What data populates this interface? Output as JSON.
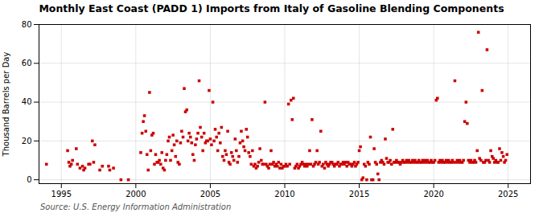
{
  "chart_data": {
    "type": "scatter",
    "title": "Monthly East Coast (PADD 1) Imports from Italy of Gasoline Blending Components",
    "ylabel": "Thousand Barrels per Day",
    "source": "Source: U.S. Energy Information Administration",
    "color": "#cc0000",
    "marker": "square",
    "grid": true,
    "xlim": [
      1993.5,
      2026.5
    ],
    "ylim": [
      -2,
      80
    ],
    "xticks": [
      1995,
      2000,
      2005,
      2010,
      2015,
      2020,
      2025
    ],
    "yticks": [
      0,
      20,
      40,
      60,
      80
    ],
    "x": [
      1994.0,
      1995.42,
      1995.5,
      1995.58,
      1995.67,
      1995.75,
      1996.0,
      1996.08,
      1996.25,
      1996.42,
      1996.5,
      1996.58,
      1996.83,
      1996.92,
      1997.08,
      1997.17,
      1997.25,
      1997.58,
      1997.75,
      1998.17,
      1998.25,
      1998.5,
      1999.0,
      1999.5,
      2000.33,
      2000.42,
      2000.5,
      2000.58,
      2000.67,
      2000.75,
      2000.83,
      2000.92,
      2001.0,
      2001.08,
      2001.17,
      2001.25,
      2001.33,
      2001.42,
      2001.5,
      2001.58,
      2001.67,
      2001.75,
      2001.83,
      2001.92,
      2002.0,
      2002.08,
      2002.17,
      2002.25,
      2002.33,
      2002.42,
      2002.5,
      2002.58,
      2002.67,
      2002.75,
      2002.83,
      2002.92,
      2003.0,
      2003.08,
      2003.17,
      2003.25,
      2003.33,
      2003.42,
      2003.5,
      2003.58,
      2003.67,
      2003.75,
      2003.83,
      2003.92,
      2004.0,
      2004.08,
      2004.17,
      2004.25,
      2004.33,
      2004.42,
      2004.5,
      2004.58,
      2004.67,
      2004.75,
      2004.83,
      2004.92,
      2005.0,
      2005.08,
      2005.17,
      2005.25,
      2005.33,
      2005.42,
      2005.5,
      2005.58,
      2005.67,
      2005.75,
      2005.83,
      2005.92,
      2006.0,
      2006.08,
      2006.17,
      2006.25,
      2006.33,
      2006.42,
      2006.5,
      2006.58,
      2006.67,
      2006.75,
      2006.83,
      2006.92,
      2007.0,
      2007.08,
      2007.17,
      2007.25,
      2007.33,
      2007.42,
      2007.5,
      2007.58,
      2007.67,
      2007.75,
      2007.83,
      2007.92,
      2008.0,
      2008.08,
      2008.17,
      2008.25,
      2008.33,
      2008.42,
      2008.5,
      2008.58,
      2008.67,
      2008.75,
      2008.83,
      2008.92,
      2009.0,
      2009.08,
      2009.17,
      2009.25,
      2009.33,
      2009.42,
      2009.5,
      2009.58,
      2009.67,
      2009.75,
      2009.83,
      2009.92,
      2010.0,
      2010.08,
      2010.17,
      2010.25,
      2010.33,
      2010.42,
      2010.5,
      2010.58,
      2010.67,
      2010.75,
      2010.83,
      2010.92,
      2011.0,
      2011.08,
      2011.17,
      2011.25,
      2011.33,
      2011.42,
      2011.5,
      2011.58,
      2011.67,
      2011.75,
      2011.83,
      2011.92,
      2012.0,
      2012.08,
      2012.17,
      2012.25,
      2012.33,
      2012.42,
      2012.5,
      2012.58,
      2012.67,
      2012.75,
      2012.83,
      2012.92,
      2013.0,
      2013.08,
      2013.17,
      2013.25,
      2013.33,
      2013.42,
      2013.5,
      2013.58,
      2013.67,
      2013.75,
      2013.83,
      2013.92,
      2014.0,
      2014.08,
      2014.17,
      2014.25,
      2014.33,
      2014.42,
      2014.5,
      2014.58,
      2014.67,
      2014.75,
      2014.83,
      2014.92,
      2015.0,
      2015.08,
      2015.17,
      2015.25,
      2015.33,
      2015.42,
      2015.5,
      2015.58,
      2015.67,
      2015.75,
      2015.83,
      2015.92,
      2016.0,
      2016.08,
      2016.17,
      2016.25,
      2016.33,
      2016.42,
      2016.5,
      2016.58,
      2016.67,
      2016.75,
      2016.83,
      2016.92,
      2017.0,
      2017.08,
      2017.17,
      2017.25,
      2017.33,
      2017.42,
      2017.5,
      2017.58,
      2017.67,
      2017.75,
      2017.83,
      2017.92,
      2018.0,
      2018.08,
      2018.17,
      2018.25,
      2018.33,
      2018.42,
      2018.5,
      2018.58,
      2018.67,
      2018.75,
      2018.83,
      2018.92,
      2019.0,
      2019.08,
      2019.17,
      2019.25,
      2019.33,
      2019.42,
      2019.5,
      2019.58,
      2019.67,
      2019.75,
      2019.83,
      2019.92,
      2020.0,
      2020.08,
      2020.17,
      2020.25,
      2020.33,
      2020.42,
      2020.5,
      2020.58,
      2020.67,
      2020.75,
      2020.83,
      2020.92,
      2021.0,
      2021.08,
      2021.17,
      2021.25,
      2021.33,
      2021.42,
      2021.5,
      2021.58,
      2021.67,
      2021.75,
      2021.83,
      2021.92,
      2022.0,
      2022.08,
      2022.17,
      2022.25,
      2022.33,
      2022.42,
      2022.5,
      2022.58,
      2022.67,
      2022.75,
      2022.83,
      2022.92,
      2023.0,
      2023.08,
      2023.17,
      2023.25,
      2023.33,
      2023.42,
      2023.5,
      2023.58,
      2023.67,
      2023.75,
      2023.83,
      2023.92,
      2024.0,
      2024.08,
      2024.17,
      2024.25,
      2024.33,
      2024.42,
      2024.5,
      2024.58,
      2024.67,
      2024.75,
      2024.83,
      2024.92
    ],
    "values": [
      8,
      15,
      9,
      7,
      8,
      10,
      16,
      8,
      6,
      7,
      5,
      6,
      8,
      8,
      20,
      9,
      18,
      5,
      7,
      7,
      5,
      6,
      0,
      0,
      14,
      24,
      30,
      33,
      25,
      13,
      5,
      45,
      15,
      23,
      24,
      8,
      13,
      9,
      9,
      10,
      8,
      14,
      6,
      5,
      10,
      13,
      20,
      22,
      10,
      15,
      23,
      18,
      12,
      20,
      9,
      8,
      19,
      25,
      22,
      47,
      35,
      36,
      20,
      24,
      22,
      19,
      13,
      10,
      18,
      21,
      24,
      51,
      27,
      22,
      15,
      24,
      19,
      20,
      20,
      46,
      21,
      18,
      40,
      20,
      26,
      22,
      15,
      24,
      19,
      27,
      12,
      10,
      15,
      13,
      25,
      9,
      8,
      14,
      12,
      10,
      21,
      15,
      9,
      12,
      19,
      25,
      20,
      17,
      15,
      26,
      22,
      14,
      12,
      8,
      15,
      7,
      8,
      6,
      7,
      9,
      16,
      10,
      8,
      8,
      40,
      8,
      7,
      6,
      8,
      15,
      8,
      9,
      7,
      8,
      7,
      9,
      6,
      8,
      6,
      7,
      7,
      8,
      7,
      39,
      8,
      41,
      31,
      42,
      6,
      7,
      8,
      6,
      7,
      8,
      9,
      8,
      7,
      8,
      7,
      8,
      15,
      8,
      31,
      7,
      8,
      9,
      15,
      8,
      9,
      25,
      7,
      8,
      6,
      9,
      8,
      7,
      8,
      9,
      9,
      8,
      7,
      8,
      8,
      9,
      7,
      8,
      8,
      9,
      8,
      9,
      7,
      9,
      8,
      8,
      7,
      8,
      9,
      7,
      8,
      9,
      15,
      17,
      0,
      1,
      8,
      7,
      0,
      9,
      8,
      22,
      0,
      0,
      16,
      9,
      8,
      3,
      0,
      9,
      10,
      9,
      8,
      21,
      11,
      9,
      9,
      10,
      8,
      26,
      9,
      9,
      10,
      9,
      9,
      8,
      9,
      10,
      9,
      9,
      10,
      9,
      10,
      9,
      9,
      10,
      9,
      10,
      9,
      9,
      10,
      9,
      9,
      10,
      9,
      10,
      9,
      10,
      9,
      9,
      10,
      9,
      9,
      10,
      41,
      42,
      9,
      10,
      9,
      10,
      9,
      9,
      10,
      9,
      10,
      9,
      9,
      10,
      9,
      51,
      9,
      10,
      9,
      10,
      9,
      9,
      10,
      30,
      40,
      29,
      10,
      9,
      10,
      9,
      9,
      10,
      9,
      15,
      76,
      11,
      10,
      46,
      9,
      9,
      10,
      67,
      10,
      9,
      15,
      12,
      11,
      9,
      10,
      9,
      9,
      16,
      10,
      14,
      12,
      9,
      10,
      13
    ]
  }
}
